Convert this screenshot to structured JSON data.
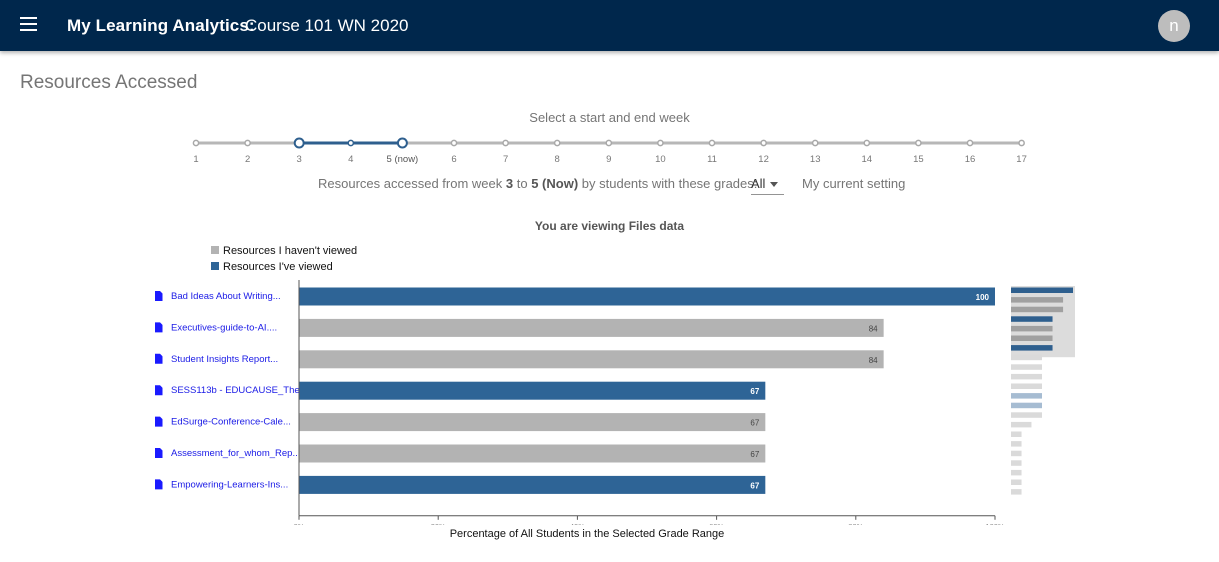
{
  "header": {
    "app_title": "My Learning Analytics:",
    "course_title": "Course 101 WN 2020",
    "avatar_initial": "n",
    "bg_color": "#00274c"
  },
  "page_title": "Resources Accessed",
  "slider": {
    "caption": "Select a start and end week",
    "weeks": [
      "1",
      "2",
      "3",
      "4",
      "5 (now)",
      "6",
      "7",
      "8",
      "9",
      "10",
      "11",
      "12",
      "13",
      "14",
      "15",
      "16",
      "17"
    ],
    "start_index": 2,
    "end_index": 4,
    "accent": "#2e5f8e"
  },
  "filter": {
    "text_prefix": "Resources accessed from week",
    "start_week": "3",
    "text_to": "to",
    "end_week": "5 (Now)",
    "text_suffix": "by students with these grades:",
    "grade_value": "All",
    "setting_link": "My current setting"
  },
  "viewing_title": "You are viewing Files data",
  "legend": [
    {
      "label": "Resources I haven't viewed",
      "color": "#b3b3b3"
    },
    {
      "label": "Resources I've viewed",
      "color": "#2e6496"
    }
  ],
  "chart_data": {
    "type": "bar",
    "orientation": "horizontal",
    "categories": [
      "Bad Ideas About Writing...",
      "Executives-guide-to-AI....",
      "Student Insights Report...",
      "SESS113b - EDUCAUSE_The",
      "EdSurge-Conference-Cale...",
      "Assessment_for_whom_Rep...",
      "Empowering-Learners-Ins..."
    ],
    "values": [
      100,
      84,
      84,
      67,
      67,
      67,
      67
    ],
    "viewed": [
      true,
      false,
      false,
      true,
      false,
      false,
      true
    ],
    "xlim": [
      0,
      100
    ],
    "xticks": [
      "0%",
      "20%",
      "40%",
      "60%",
      "80%",
      "100%"
    ],
    "xlabel": "Percentage of All Students in the Selected Grade Range"
  },
  "minimap": {
    "values": [
      100,
      84,
      84,
      67,
      67,
      67,
      67,
      50,
      50,
      50,
      50,
      50,
      50,
      50,
      33,
      17,
      17,
      17,
      17,
      17,
      17,
      17
    ],
    "viewed": [
      true,
      false,
      false,
      true,
      false,
      false,
      true,
      false,
      false,
      false,
      false,
      true,
      true,
      false,
      false,
      false,
      false,
      false,
      false,
      false,
      false,
      false
    ]
  }
}
